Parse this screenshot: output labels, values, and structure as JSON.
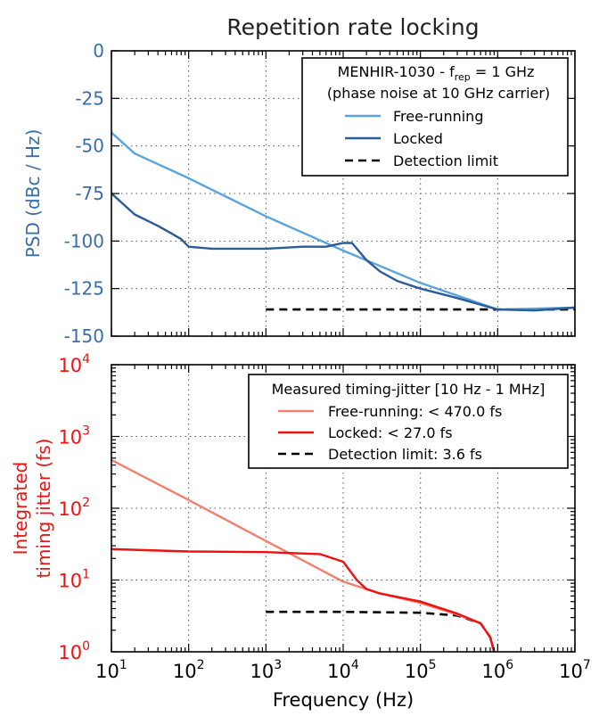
{
  "title": "Repetition rate locking",
  "colors": {
    "free_running_top": "#5aa5e0",
    "locked_top": "#2c5b95",
    "free_running_bottom": "#f08070",
    "locked_bottom": "#ee1111",
    "detection": "#000000",
    "top_axis": "#3a6eaa",
    "bottom_axis": "#ee1111"
  },
  "chart_data": [
    {
      "type": "line",
      "ylabel": "PSD (dBc / Hz)",
      "xscale": "log",
      "xlim": [
        10,
        10000000
      ],
      "ylim": [
        -150,
        0
      ],
      "grid": true,
      "y_ticks": [
        "0",
        "-25",
        "-50",
        "-75",
        "-100",
        "-125",
        "-150"
      ],
      "legend": {
        "position": "top-right",
        "title_main": "MENHIR-1030 - f",
        "title_sub": "rep",
        "title_tail": " = 1 GHz",
        "title_line2": "(phase noise at 10 GHz carrier)"
      },
      "series": [
        {
          "name": "Free-running",
          "style": "solid",
          "x": [
            10,
            20,
            100,
            1000,
            10000,
            100000,
            1000000,
            10000000
          ],
          "y": [
            -43,
            -54,
            -67,
            -87,
            -105,
            -122,
            -136,
            -135
          ]
        },
        {
          "name": "Locked",
          "style": "solid",
          "x": [
            10,
            20,
            40,
            60,
            80,
            100,
            200,
            1000,
            3000,
            6000,
            10000,
            13000,
            20000,
            30000,
            50000,
            100000,
            300000,
            1000000,
            3000000,
            10000000
          ],
          "y": [
            -75,
            -86,
            -92,
            -96,
            -99,
            -103,
            -104,
            -104,
            -103,
            -103,
            -101,
            -101,
            -110,
            -116,
            -121,
            -125,
            -130,
            -136,
            -136.5,
            -135
          ]
        },
        {
          "name": "Detection limit",
          "style": "dashed",
          "x": [
            1000,
            10000000
          ],
          "y": [
            -136,
            -136
          ]
        }
      ]
    },
    {
      "type": "line",
      "xlabel": "Frequency (Hz)",
      "ylabel_line1": "Integrated",
      "ylabel_line2": "timing jitter (fs)",
      "xscale": "log",
      "yscale": "log",
      "xlim": [
        10,
        10000000
      ],
      "ylim": [
        1,
        10000
      ],
      "grid": true,
      "x_ticks": [
        {
          "base": "10",
          "exp": "1"
        },
        {
          "base": "10",
          "exp": "2"
        },
        {
          "base": "10",
          "exp": "3"
        },
        {
          "base": "10",
          "exp": "4"
        },
        {
          "base": "10",
          "exp": "5"
        },
        {
          "base": "10",
          "exp": "6"
        },
        {
          "base": "10",
          "exp": "7"
        }
      ],
      "y_ticks": [
        {
          "base": "10",
          "exp": "0"
        },
        {
          "base": "10",
          "exp": "1"
        },
        {
          "base": "10",
          "exp": "2"
        },
        {
          "base": "10",
          "exp": "3"
        },
        {
          "base": "10",
          "exp": "4"
        }
      ],
      "legend": {
        "position": "top-right",
        "title": "Measured timing-jitter [10 Hz - 1 MHz]"
      },
      "series": [
        {
          "name": "Free-running: < 470.0 fs",
          "style": "solid",
          "x": [
            10,
            100,
            1000,
            10000,
            30000,
            100000,
            300000,
            600000,
            800000,
            900000
          ],
          "y": [
            470,
            130,
            35,
            9.5,
            6.5,
            4.8,
            3.3,
            2.5,
            1.6,
            1.0
          ]
        },
        {
          "name": "Locked: < 27.0 fs",
          "style": "solid",
          "x": [
            10,
            100,
            1000,
            5000,
            10000,
            15000,
            20000,
            30000,
            100000,
            300000,
            600000,
            800000,
            900000
          ],
          "y": [
            27,
            25,
            24.5,
            23,
            18,
            10,
            7.5,
            6.5,
            5,
            3.4,
            2.5,
            1.6,
            1.0
          ]
        },
        {
          "name": "Detection limit: 3.6 fs",
          "style": "dashed",
          "x": [
            1000,
            10000,
            100000,
            300000,
            600000,
            800000,
            900000
          ],
          "y": [
            3.6,
            3.6,
            3.5,
            3.2,
            2.5,
            1.6,
            1.0
          ]
        }
      ]
    }
  ]
}
